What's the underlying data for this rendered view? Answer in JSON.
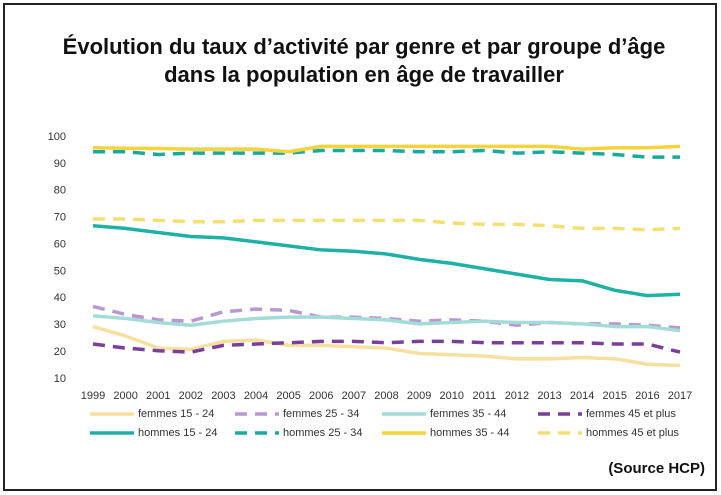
{
  "chart_data": {
    "type": "line",
    "title": [
      "Évolution du taux d’activité par genre et par groupe d’âge",
      "dans la population en âge de travailler"
    ],
    "source": "(Source HCP)",
    "categories": [
      "1999",
      "2000",
      "2001",
      "2002",
      "2003",
      "2004",
      "2005",
      "2006",
      "2007",
      "2008",
      "2009",
      "2010",
      "2011",
      "2012",
      "2013",
      "2014",
      "2015",
      "2016",
      "2017"
    ],
    "ylim": [
      10,
      100
    ],
    "yticks": [
      10,
      20,
      30,
      40,
      50,
      60,
      70,
      80,
      90,
      100
    ],
    "grid": false,
    "legend": "bottom",
    "series": [
      {
        "name": "femmes 15 - 24",
        "color": "#f6df9f",
        "dashed": false,
        "values": [
          29.5,
          26,
          21.5,
          21,
          24,
          24.5,
          22.5,
          22.5,
          22,
          21.5,
          19.5,
          19,
          18.5,
          17.5,
          17.5,
          18,
          17.5,
          15.5,
          15
        ]
      },
      {
        "name": "femmes 25 - 34",
        "color": "#b998d2",
        "dashed": true,
        "values": [
          37,
          34,
          32,
          31.5,
          35,
          36,
          35.5,
          33,
          33,
          32.5,
          31.5,
          32,
          31.5,
          30,
          31,
          30.5,
          30.5,
          30,
          29
        ]
      },
      {
        "name": "femmes 35 - 44",
        "color": "#a3dcd6",
        "dashed": false,
        "values": [
          33.5,
          32.5,
          31,
          30,
          31.5,
          32.5,
          33,
          33,
          32.5,
          32,
          30.5,
          31,
          31.5,
          31,
          31,
          30.5,
          29.5,
          29.5,
          28
        ]
      },
      {
        "name": "femmes 45 et plus",
        "color": "#7a3f98",
        "dashed": true,
        "values": [
          23,
          21.5,
          20.5,
          20,
          22.5,
          23,
          23.5,
          24,
          24,
          23.5,
          24,
          24,
          23.5,
          23.5,
          23.5,
          23.5,
          23,
          23,
          20
        ]
      },
      {
        "name": "hommes 15 - 24",
        "color": "#1fb0a6",
        "dashed": false,
        "values": [
          67,
          66,
          64.5,
          63,
          62.5,
          61,
          59.5,
          58,
          57.5,
          56.5,
          54.5,
          53,
          51,
          49,
          47,
          46.5,
          43,
          41,
          41.5
        ]
      },
      {
        "name": "hommes 25 - 34",
        "color": "#19a99f",
        "dashed": true,
        "values": [
          94.5,
          94.5,
          93.5,
          94,
          94,
          94,
          94,
          95,
          95,
          95,
          94.5,
          94.5,
          95,
          94,
          94.5,
          94,
          93.5,
          92.5,
          92.5
        ]
      },
      {
        "name": "hommes 35 - 44",
        "color": "#f3d43c",
        "dashed": false,
        "values": [
          96,
          95.8,
          95.7,
          95.5,
          95.5,
          95.5,
          94.5,
          96.5,
          96.5,
          96.5,
          96.5,
          96.5,
          96.5,
          96.5,
          96.5,
          95.5,
          96,
          96,
          96.5
        ]
      },
      {
        "name": "hommes 45 et plus",
        "color": "#f4df72",
        "dashed": true,
        "values": [
          69.5,
          69.5,
          69,
          68.5,
          68.5,
          69,
          69,
          69,
          69,
          69,
          69,
          68,
          67.5,
          67.5,
          67,
          66,
          66,
          65.5,
          66
        ]
      }
    ]
  }
}
